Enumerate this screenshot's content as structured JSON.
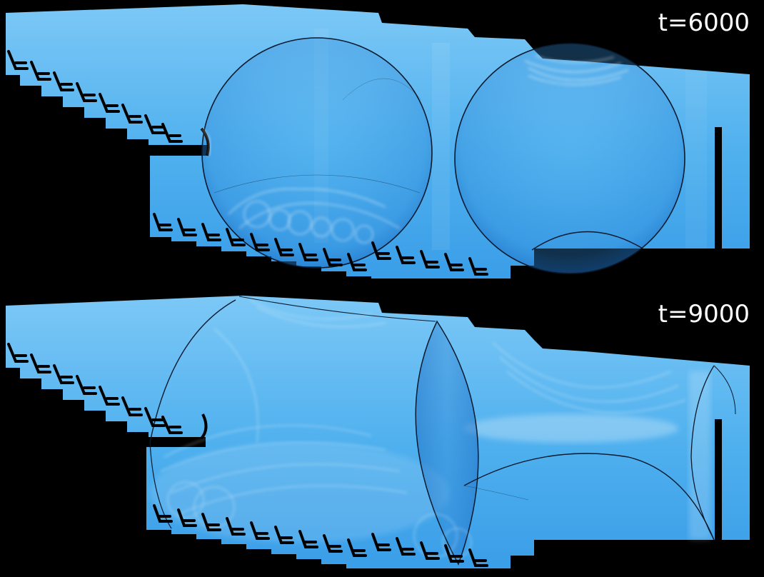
{
  "frames": [
    {
      "label": "t=6000"
    },
    {
      "label": "t=9000"
    }
  ],
  "colors": {
    "background": "#000000",
    "field_light": "#7cc8f6",
    "field_base": "#45aaec",
    "field_dark": "#2a86d6",
    "wavefront": "#0a1a2e",
    "highlight": "#ffffff",
    "label": "#ffffff"
  }
}
